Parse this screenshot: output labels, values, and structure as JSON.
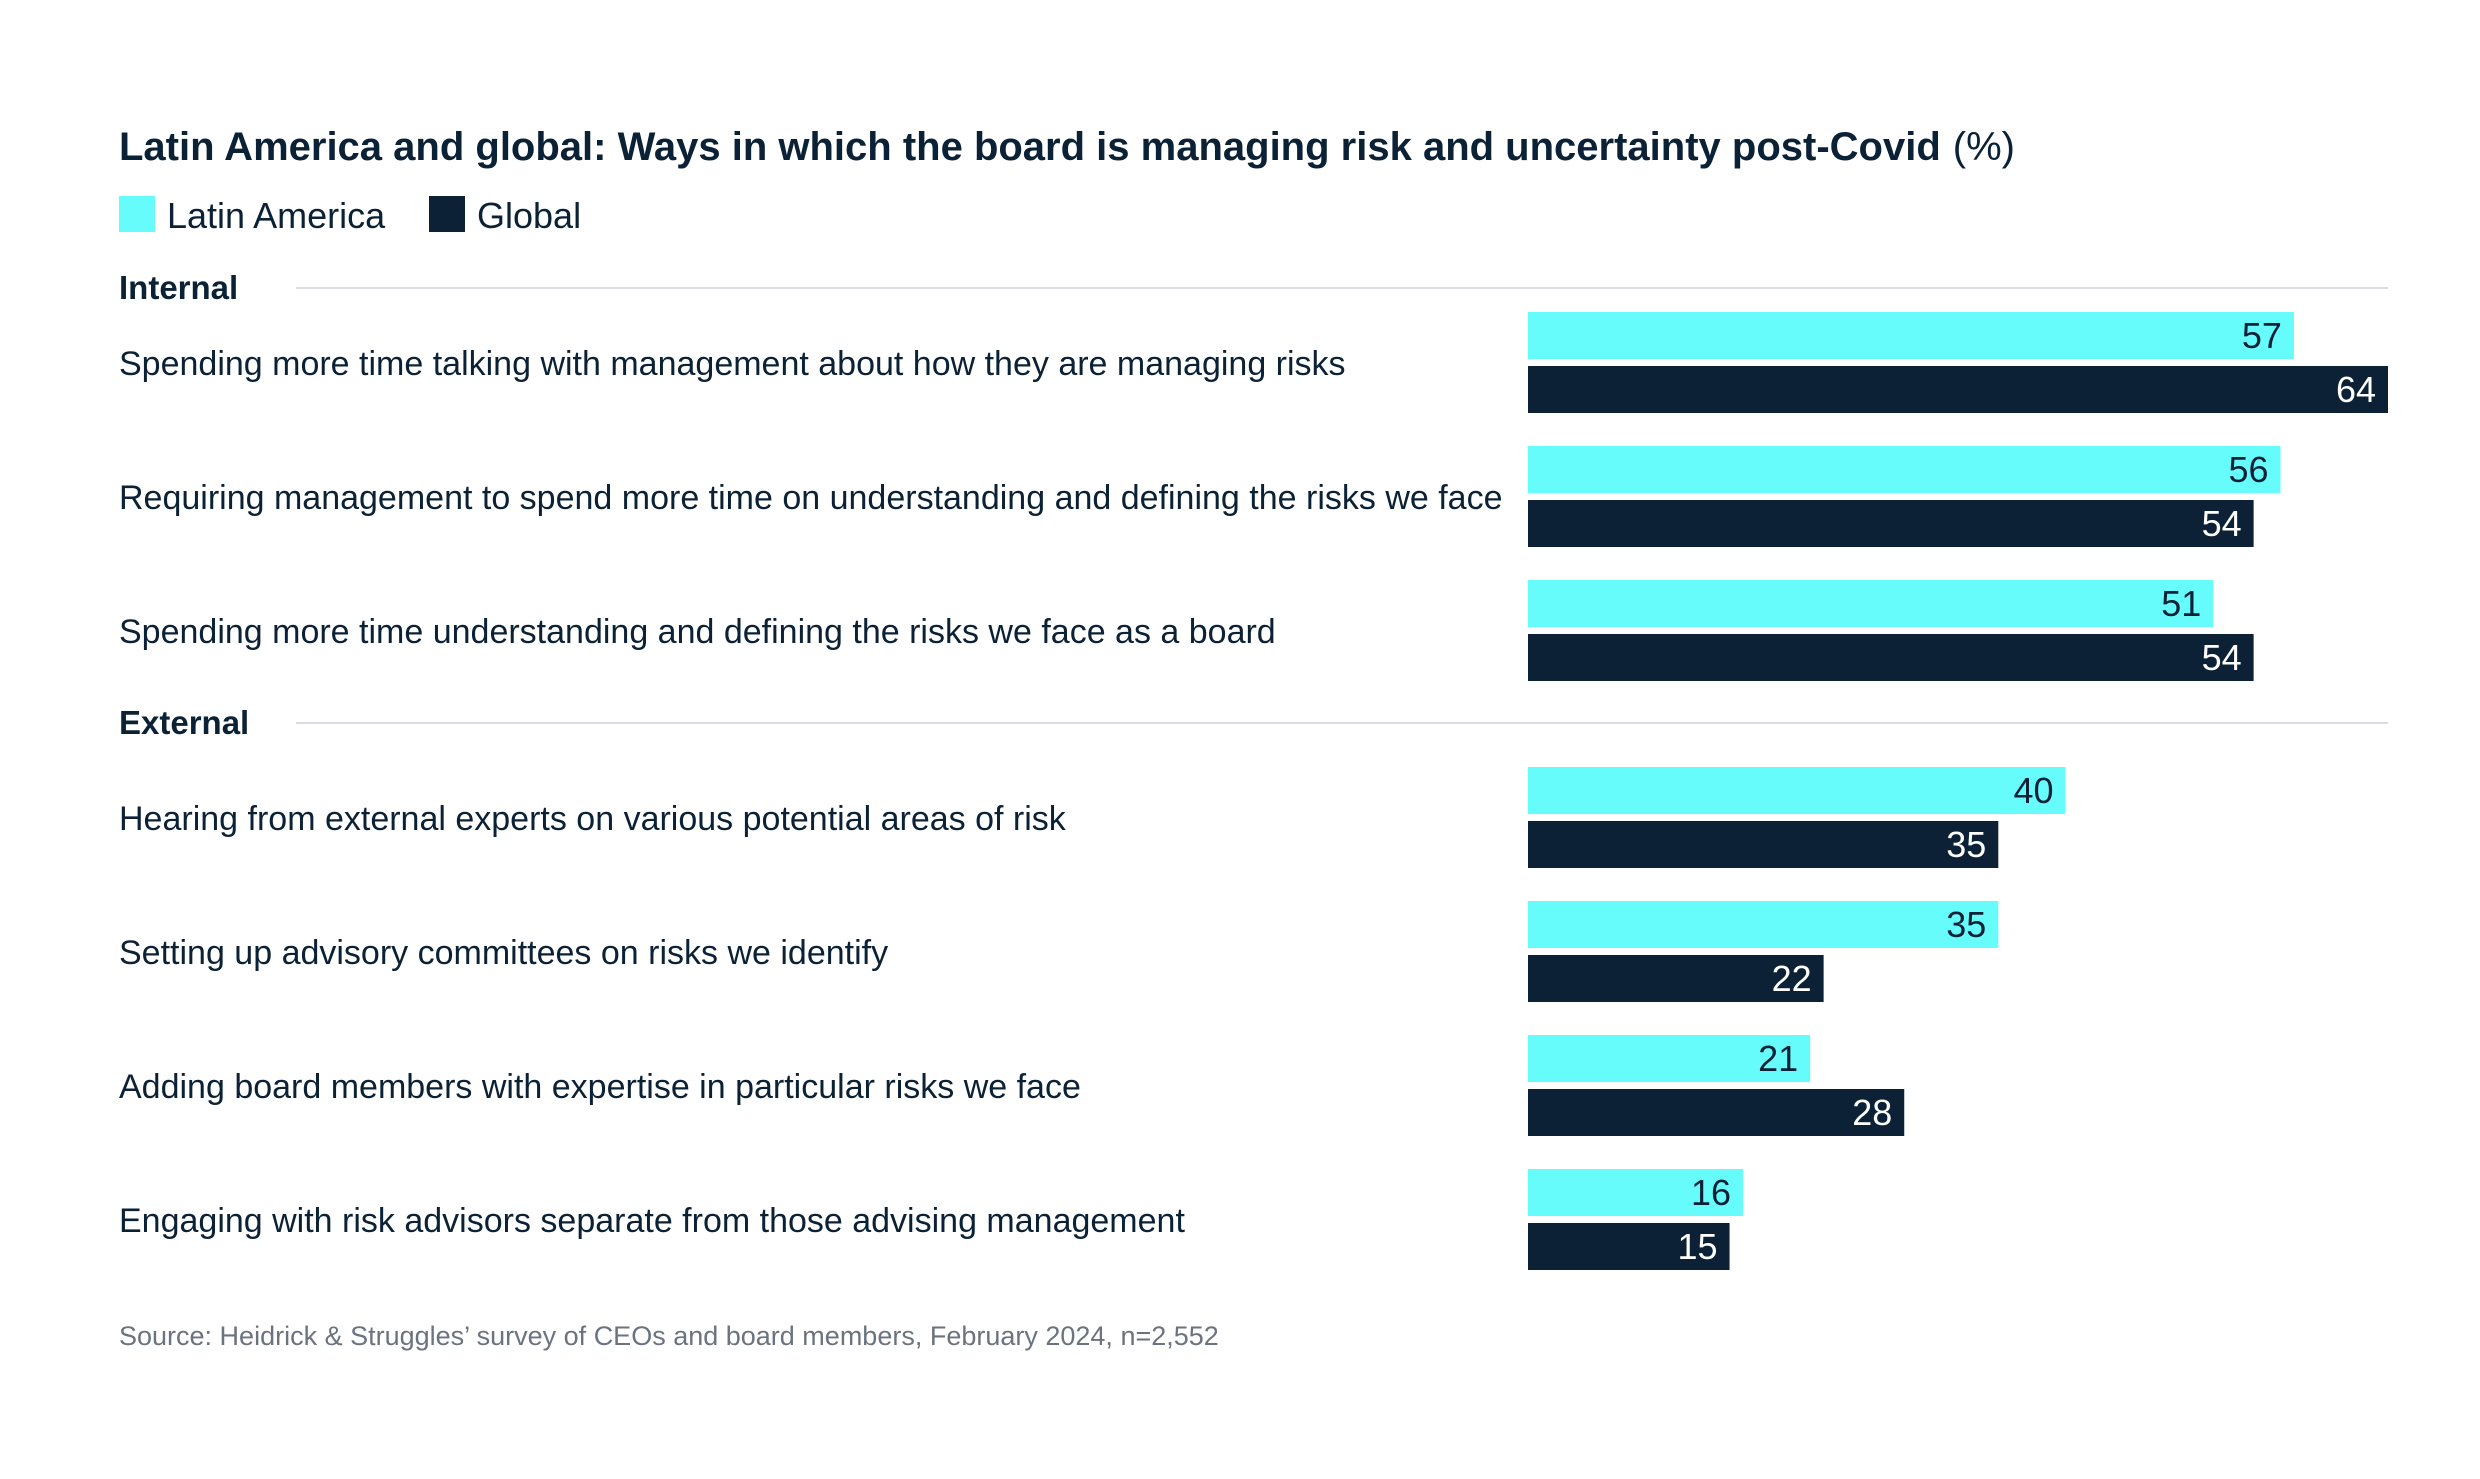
{
  "colors": {
    "latin_america": "#66fcfc",
    "global": "#0c2136",
    "text": "#0b2136",
    "source_text": "#6b7280",
    "divider": "#d9dde2",
    "label_on_light": "#0c2136",
    "label_on_dark": "#ffffff"
  },
  "chart_data": {
    "type": "bar",
    "orientation": "horizontal",
    "title": "Latin America and global: Ways in which the board is managing risk and uncertainty post-Covid",
    "title_unit": "(%)",
    "xlim": [
      0,
      64
    ],
    "grid": false,
    "legend_placement": "top-left",
    "series": [
      {
        "name": "Latin America",
        "color_key": "latin_america"
      },
      {
        "name": "Global",
        "color_key": "global"
      }
    ],
    "groups": [
      {
        "name": "Internal",
        "items": [
          {
            "label": "Spending more time talking with management about how they are managing risks",
            "values": [
              57,
              64
            ]
          },
          {
            "label": "Requiring management to spend more time on understanding and defining the risks we face",
            "values": [
              56,
              54
            ]
          },
          {
            "label": "Spending more time understanding and defining the risks we face as a board",
            "values": [
              51,
              54
            ]
          }
        ]
      },
      {
        "name": "External",
        "items": [
          {
            "label": "Hearing from external experts on various potential areas of risk",
            "values": [
              40,
              35
            ]
          },
          {
            "label": "Setting up advisory committees on risks we identify",
            "values": [
              35,
              22
            ]
          },
          {
            "label": "Adding board members with expertise in particular risks we face",
            "values": [
              21,
              28
            ]
          },
          {
            "label": "Engaging with risk advisors separate from those advising management",
            "values": [
              16,
              15
            ]
          }
        ]
      }
    ],
    "source": "Source: Heidrick & Struggles’ survey of CEOs and board members, February 2024, n=2,552"
  }
}
